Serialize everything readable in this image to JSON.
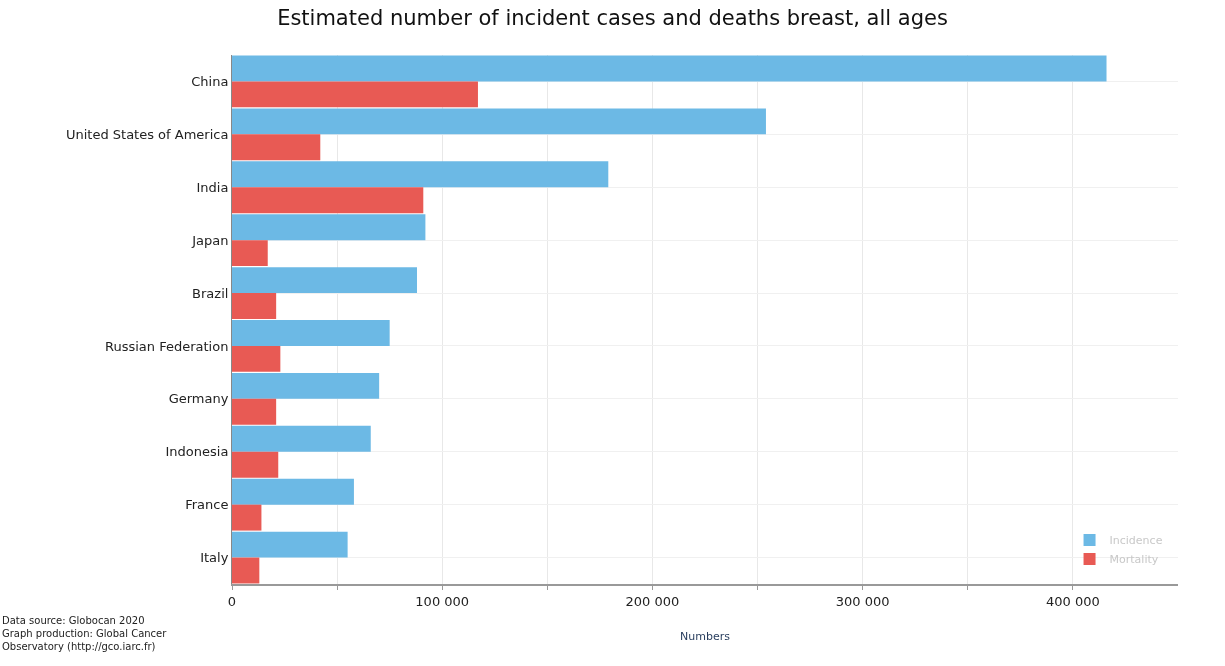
{
  "chart_data": {
    "type": "bar",
    "orientation": "horizontal",
    "title": "Estimated number of incident cases and deaths breast, all ages",
    "xlabel": "Numbers",
    "categories": [
      "China",
      "United States of America",
      "India",
      "Japan",
      "Brazil",
      "Russian Federation",
      "Germany",
      "Indonesia",
      "France",
      "Italy"
    ],
    "series": [
      {
        "name": "Incidence",
        "color": "#6cb9e5",
        "values": [
          416000,
          254000,
          179000,
          92000,
          88000,
          75000,
          70000,
          66000,
          58000,
          55000
        ]
      },
      {
        "name": "Mortality",
        "color": "#e85a54",
        "values": [
          117000,
          42000,
          91000,
          17000,
          21000,
          23000,
          21000,
          22000,
          14000,
          13000
        ]
      }
    ],
    "xlim": [
      0,
      450000
    ],
    "xticks": [
      0,
      {
        "value": 50000,
        "label": null
      },
      {
        "value": 100000,
        "label": "100 000"
      },
      {
        "value": 150000,
        "label": null
      },
      {
        "value": 200000,
        "label": "200 000"
      },
      {
        "value": 250000,
        "label": null
      },
      {
        "value": 300000,
        "label": "300 000"
      },
      {
        "value": 350000,
        "label": null
      },
      {
        "value": 400000,
        "label": "400 000"
      }
    ],
    "grid": true,
    "legend": "bottom right",
    "annotations": [
      "Data source: Globocan 2020\nGraph production: Global Cancer\nObservatory (http://gco.iarc.fr)"
    ]
  }
}
